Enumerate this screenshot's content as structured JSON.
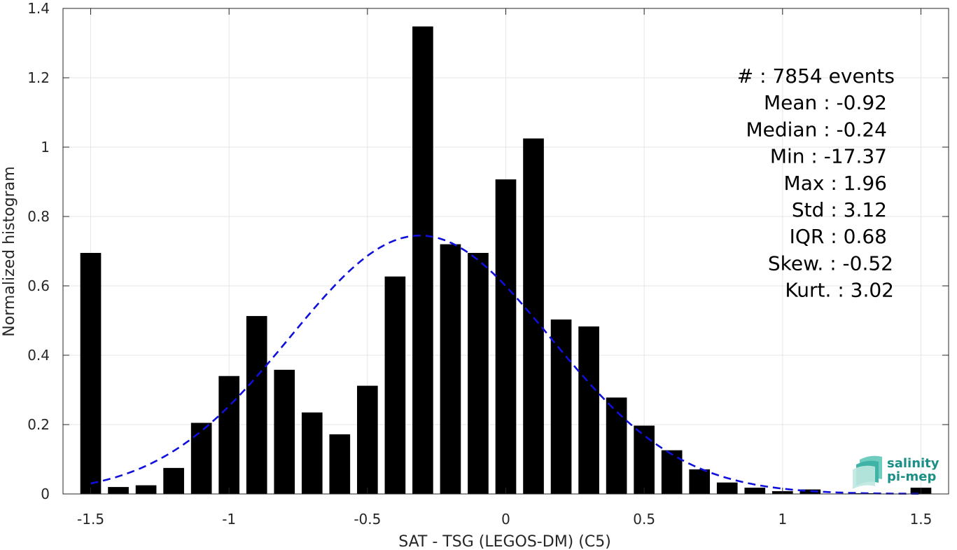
{
  "chart_data": {
    "type": "bar",
    "xlabel": "SAT - TSG (LEGOS-DM) (C5)",
    "ylabel": "Normalized histogram",
    "xlim": [
      -1.6,
      1.6
    ],
    "ylim": [
      0,
      1.4
    ],
    "xticks": [
      -1.5,
      -1,
      -0.5,
      0,
      0.5,
      1,
      1.5
    ],
    "xtick_labels": [
      "-1.5",
      "-1",
      "-0.5",
      "0",
      "0.5",
      "1",
      "1.5"
    ],
    "yticks": [
      0,
      0.2,
      0.4,
      0.6,
      0.8,
      1,
      1.2,
      1.4
    ],
    "ytick_labels": [
      "0",
      "0.2",
      "0.4",
      "0.6",
      "0.8",
      "1",
      "1.2",
      "1.4"
    ],
    "grid": true,
    "bar_color": "#000000",
    "bar_width": 0.075,
    "x": [
      -1.5,
      -1.4,
      -1.3,
      -1.2,
      -1.1,
      -1.0,
      -0.9,
      -0.8,
      -0.7,
      -0.6,
      -0.5,
      -0.4,
      -0.3,
      -0.2,
      -0.1,
      0.0,
      0.1,
      0.2,
      0.3,
      0.4,
      0.5,
      0.6,
      0.7,
      0.8,
      0.9,
      1.0,
      1.1,
      1.2,
      1.3,
      1.4,
      1.5
    ],
    "values": [
      0.695,
      0.02,
      0.025,
      0.075,
      0.205,
      0.34,
      0.513,
      0.358,
      0.235,
      0.172,
      0.312,
      0.627,
      1.348,
      0.72,
      0.695,
      0.907,
      1.025,
      0.503,
      0.483,
      0.278,
      0.197,
      0.126,
      0.071,
      0.033,
      0.018,
      0.008,
      0.013,
      0.0,
      0.002,
      0.0,
      0.018
    ],
    "fit_curve": {
      "type": "gaussian",
      "style": "dashed",
      "color": "#1010dd",
      "mean": -0.31,
      "sigma": 0.47,
      "peak": 0.745,
      "x_range": [
        -1.5,
        1.5
      ]
    },
    "stats_lines": [
      "#  : 7854 events",
      "Mean : -0.92",
      "Median : -0.24",
      "Min : -17.37",
      "Max : 1.96",
      "Std : 3.12",
      "IQR : 0.68",
      "Skew. : -0.52",
      "Kurt. : 3.02"
    ]
  },
  "logo": {
    "line1": "salinity",
    "line2": "pi-mep",
    "color": "#1a8f86"
  }
}
